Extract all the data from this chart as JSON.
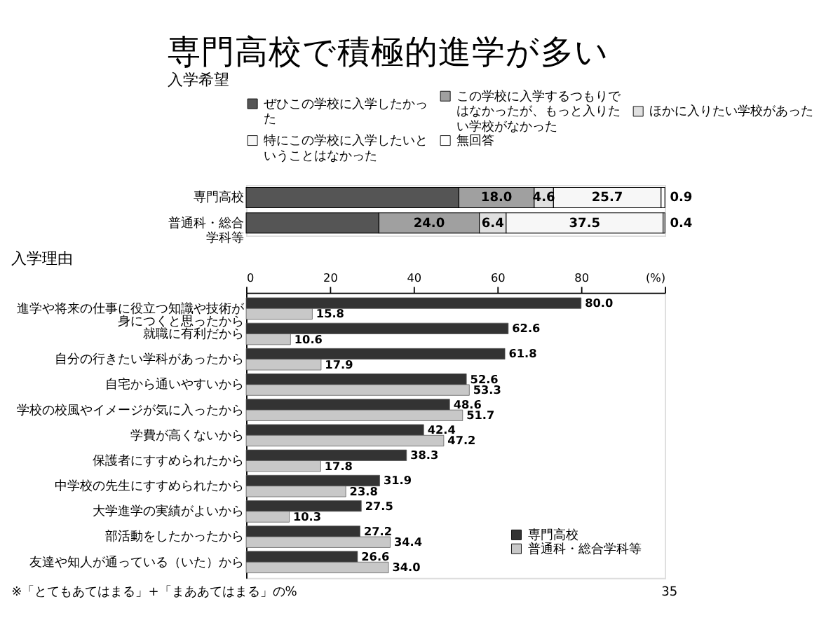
{
  "chart_data": [
    {
      "type": "bar",
      "orientation": "horizontal",
      "stacked": true,
      "title": "専門高校で積極的進学が多い",
      "subtitle": "入学希望",
      "categories": [
        "専門高校",
        "普通科・総合学科等"
      ],
      "xlim": [
        0,
        100
      ],
      "legend": "top",
      "series": [
        {
          "name": "ぜひこの学校に入学したかった",
          "color": "#555555",
          "values": [
            50.8,
            31.7
          ],
          "value_labels": [
            null,
            null
          ]
        },
        {
          "name": "この学校に入学するつもりではなかったが、もっと入りたい学校がなかった",
          "color": "#a0a0a0",
          "values": [
            18.0,
            24.0
          ],
          "value_labels": [
            "18.0",
            "24.0"
          ]
        },
        {
          "name": "ほかに入りたい学校があった",
          "color": "#e0e0e0",
          "values": [
            4.6,
            6.4
          ],
          "value_labels": [
            "4.6",
            "6.4"
          ]
        },
        {
          "name": "特にこの学校に入学したいということはなかった",
          "color": "#f7f7f7",
          "values": [
            25.7,
            37.5
          ],
          "value_labels": [
            "25.7",
            "37.5"
          ]
        },
        {
          "name": "無回答",
          "color": "#ffffff",
          "values": [
            0.9,
            0.4
          ],
          "value_labels": [
            "0.9",
            "0.4"
          ]
        }
      ]
    },
    {
      "type": "bar",
      "orientation": "horizontal",
      "title": "入学理由",
      "categories": [
        "進学や将来の仕事に役立つ知識や技術が身につくと思ったから",
        "就職に有利だから",
        "自分の行きたい学科があったから",
        "自宅から通いやすいから",
        "学校の校風やイメージが気に入ったから",
        "学費が高くないから",
        "保護者にすすめられたから",
        "中学校の先生にすすめられたから",
        "大学進学の実績がよいから",
        "部活動をしたかったから",
        "友達や知人が通っている（いた）から"
      ],
      "xlim": [
        0,
        100
      ],
      "xticks": [
        0,
        20,
        40,
        60,
        80,
        {
          "value": 100,
          "label": "(%)"
        }
      ],
      "legend": "bottom right",
      "series": [
        {
          "name": "専門高校",
          "color": "#333333",
          "values": [
            80.0,
            62.6,
            61.8,
            52.6,
            48.6,
            42.4,
            38.3,
            31.9,
            27.5,
            27.2,
            26.6
          ],
          "value_labels": [
            "80.0",
            "62.6",
            "61.8",
            "52.6",
            "48.6",
            "42.4",
            "38.3",
            "31.9",
            "27.5",
            "27.2",
            "26.6"
          ]
        },
        {
          "name": "普通科・総合学科等",
          "color": "#c8c8c8",
          "values": [
            15.8,
            10.6,
            17.9,
            53.3,
            51.7,
            47.2,
            17.8,
            23.8,
            10.3,
            34.4,
            34.0
          ],
          "value_labels": [
            "15.8",
            "10.6",
            "17.9",
            "53.3",
            "51.7",
            "47.2",
            "17.8",
            "23.8",
            "10.3",
            "34.4",
            "34.0"
          ]
        }
      ],
      "annotations": [
        "※「とてもあてはまる」+「まああてはまる」の%",
        "35"
      ]
    }
  ]
}
